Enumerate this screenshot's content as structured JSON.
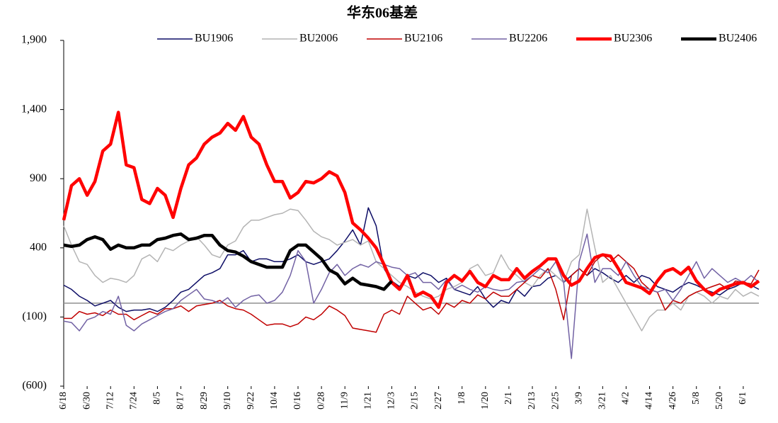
{
  "chart_data": {
    "type": "line",
    "title": "华东06基差",
    "categories": [
      "6/18",
      null,
      null,
      "6/30",
      null,
      null,
      "7/12",
      null,
      null,
      "7/24",
      null,
      null,
      "8/5",
      null,
      null,
      "8/17",
      null,
      null,
      "8/29",
      null,
      null,
      "9/10",
      null,
      null,
      "9/22",
      null,
      null,
      "10/4",
      null,
      null,
      "0/16",
      null,
      null,
      "0/28",
      null,
      null,
      "11/9",
      null,
      null,
      "1/21",
      null,
      null,
      "12/3",
      null,
      null,
      "2/15",
      null,
      null,
      "2/27",
      null,
      null,
      "1/8",
      null,
      null,
      "1/20",
      null,
      null,
      "2/1",
      null,
      null,
      "2/13",
      null,
      null,
      "2/25",
      null,
      null,
      "3/9",
      null,
      null,
      "3/21",
      null,
      null,
      "4/2",
      null,
      null,
      "4/14",
      null,
      null,
      "4/26",
      null,
      null,
      "5/8",
      null,
      null,
      "5/20",
      null,
      null,
      "6/1",
      null,
      null
    ],
    "series": [
      {
        "name": "BU1906",
        "color": "#0d0d66",
        "line_width": 1.5,
        "values": [
          130,
          100,
          50,
          20,
          -20,
          0,
          20,
          -30,
          -60,
          -50,
          -50,
          -40,
          -60,
          -30,
          20,
          80,
          100,
          150,
          200,
          220,
          250,
          350,
          350,
          380,
          300,
          320,
          320,
          300,
          300,
          320,
          350,
          300,
          280,
          300,
          320,
          380,
          450,
          530,
          420,
          690,
          560,
          250,
          160,
          120,
          200,
          180,
          220,
          200,
          150,
          180,
          100,
          80,
          60,
          120,
          30,
          -30,
          20,
          0,
          100,
          50,
          120,
          130,
          180,
          200,
          150,
          200,
          250,
          200,
          250,
          220,
          180,
          150,
          200,
          150,
          200,
          180,
          120,
          100,
          80,
          120,
          150,
          130,
          100,
          80,
          60,
          100,
          120,
          150,
          130,
          100
        ]
      },
      {
        "name": "BU2006",
        "color": "#b4b4b4",
        "line_width": 1.5,
        "values": [
          560,
          420,
          300,
          280,
          200,
          150,
          180,
          170,
          150,
          200,
          320,
          350,
          300,
          400,
          380,
          420,
          450,
          480,
          420,
          350,
          330,
          420,
          450,
          550,
          600,
          600,
          620,
          640,
          650,
          680,
          670,
          600,
          520,
          480,
          460,
          420,
          440,
          460,
          420,
          450,
          300,
          250,
          200,
          150,
          120,
          80,
          50,
          30,
          50,
          100,
          120,
          150,
          250,
          280,
          200,
          220,
          350,
          250,
          200,
          150,
          120,
          200,
          250,
          200,
          150,
          300,
          350,
          680,
          400,
          150,
          200,
          100,
          0,
          -100,
          -200,
          -100,
          -50,
          -50,
          0,
          -50,
          50,
          80,
          50,
          0,
          50,
          30,
          100,
          50,
          80,
          50
        ]
      },
      {
        "name": "BU2106",
        "color": "#c00000",
        "line_width": 1.5,
        "values": [
          -110,
          -110,
          -60,
          -80,
          -70,
          -90,
          -50,
          -80,
          -80,
          -120,
          -90,
          -60,
          -80,
          -40,
          -40,
          -20,
          -60,
          -20,
          -10,
          0,
          20,
          -20,
          -40,
          -50,
          -80,
          -120,
          -160,
          -150,
          -150,
          -170,
          -150,
          -100,
          -120,
          -80,
          -20,
          -50,
          -90,
          -180,
          -190,
          -200,
          -210,
          -80,
          -50,
          -80,
          50,
          0,
          -50,
          -30,
          -80,
          0,
          -30,
          20,
          0,
          60,
          30,
          80,
          50,
          50,
          100,
          150,
          200,
          180,
          250,
          100,
          -120,
          200,
          250,
          200,
          300,
          350,
          300,
          350,
          300,
          250,
          150,
          100,
          80,
          -50,
          20,
          0,
          50,
          80,
          100,
          120,
          140,
          100,
          160,
          150,
          140,
          240
        ]
      },
      {
        "name": "BU2206",
        "color": "#7262a4",
        "line_width": 1.5,
        "values": [
          -130,
          -140,
          -200,
          -120,
          -100,
          -60,
          -80,
          50,
          -160,
          -200,
          -150,
          -120,
          -90,
          -60,
          -40,
          20,
          60,
          100,
          30,
          20,
          0,
          40,
          -30,
          20,
          50,
          60,
          0,
          20,
          80,
          200,
          380,
          300,
          0,
          100,
          220,
          280,
          200,
          250,
          280,
          260,
          300,
          280,
          260,
          250,
          200,
          220,
          150,
          150,
          100,
          170,
          100,
          130,
          100,
          80,
          120,
          100,
          90,
          100,
          150,
          160,
          200,
          250,
          220,
          300,
          150,
          -400,
          300,
          500,
          150,
          250,
          250,
          200,
          300,
          200,
          120,
          100,
          80,
          100,
          20,
          100,
          200,
          300,
          180,
          250,
          200,
          150,
          180,
          150,
          200,
          150
        ]
      },
      {
        "name": "BU2306",
        "color": "#ff0000",
        "line_width": 4.5,
        "values": [
          600,
          850,
          900,
          780,
          880,
          1100,
          1150,
          1380,
          1000,
          980,
          750,
          720,
          830,
          780,
          620,
          830,
          1000,
          1050,
          1150,
          1200,
          1230,
          1300,
          1250,
          1350,
          1200,
          1150,
          1000,
          880,
          880,
          760,
          800,
          880,
          870,
          900,
          950,
          920,
          800,
          580,
          530,
          470,
          400,
          280,
          150,
          100,
          200,
          50,
          80,
          50,
          -30,
          150,
          200,
          160,
          230,
          150,
          120,
          200,
          170,
          170,
          250,
          180,
          230,
          270,
          320,
          320,
          200,
          130,
          160,
          250,
          330,
          350,
          340,
          250,
          150,
          130,
          110,
          70,
          160,
          230,
          250,
          210,
          260,
          160,
          100,
          60,
          100,
          120,
          140,
          150,
          120,
          160
        ]
      },
      {
        "name": "BU2406",
        "color": "#000000",
        "line_width": 4.5,
        "values": [
          420,
          410,
          420,
          460,
          480,
          460,
          390,
          420,
          400,
          400,
          420,
          420,
          460,
          470,
          490,
          500,
          460,
          470,
          490,
          490,
          420,
          380,
          370,
          340,
          300,
          280,
          260,
          260,
          260,
          380,
          420,
          420,
          370,
          320,
          240,
          210,
          140,
          180,
          140,
          130,
          120,
          100,
          160,
          null,
          null,
          null,
          null,
          null,
          null,
          null,
          null,
          null,
          null,
          null,
          null,
          null,
          null,
          null,
          null,
          null,
          null,
          null,
          null,
          null,
          null,
          null,
          null,
          null,
          null,
          null,
          null,
          null,
          null,
          null,
          null,
          null,
          null,
          null,
          null,
          null,
          null,
          null,
          null,
          null,
          null,
          null,
          null,
          null,
          null,
          null
        ]
      }
    ],
    "ylim": [
      -600,
      1900
    ],
    "yticks": [
      {
        "value": -600,
        "label": "(600)"
      },
      {
        "value": -100,
        "label": "(100)"
      },
      400,
      900,
      {
        "value": 1400,
        "label": "1,400"
      },
      {
        "value": 1900,
        "label": "1,900"
      }
    ],
    "zero_line_color": "#909090"
  }
}
